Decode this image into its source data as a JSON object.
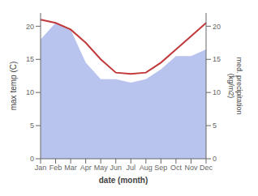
{
  "chart_data": {
    "type": "line",
    "xlabel": "date (month)",
    "ylabel": "max temp (C)",
    "y2label": "med. precipitation\n(kg/m2)",
    "categories": [
      "Jan",
      "Feb",
      "Mar",
      "Apr",
      "May",
      "Jun",
      "Jul",
      "Aug",
      "Sep",
      "Oct",
      "Nov",
      "Dec"
    ],
    "series": [
      {
        "type": "area",
        "color": "#b8c4ee",
        "values": [
          18.0,
          20.5,
          19.5,
          14.5,
          12.0,
          12.0,
          11.5,
          12.0,
          13.5,
          15.5,
          15.5,
          16.5
        ]
      },
      {
        "type": "line",
        "color": "#c0393b",
        "values": [
          21.0,
          20.5,
          19.5,
          17.5,
          15.0,
          13.0,
          12.8,
          13.0,
          14.5,
          16.5,
          18.5,
          20.5
        ]
      }
    ],
    "ylim": [
      0,
      22
    ],
    "yticks": [
      0,
      5,
      10,
      15,
      20
    ],
    "y2lim": [
      0,
      22
    ],
    "y2ticks": [
      0,
      5,
      10,
      15,
      20
    ],
    "grid": false
  }
}
